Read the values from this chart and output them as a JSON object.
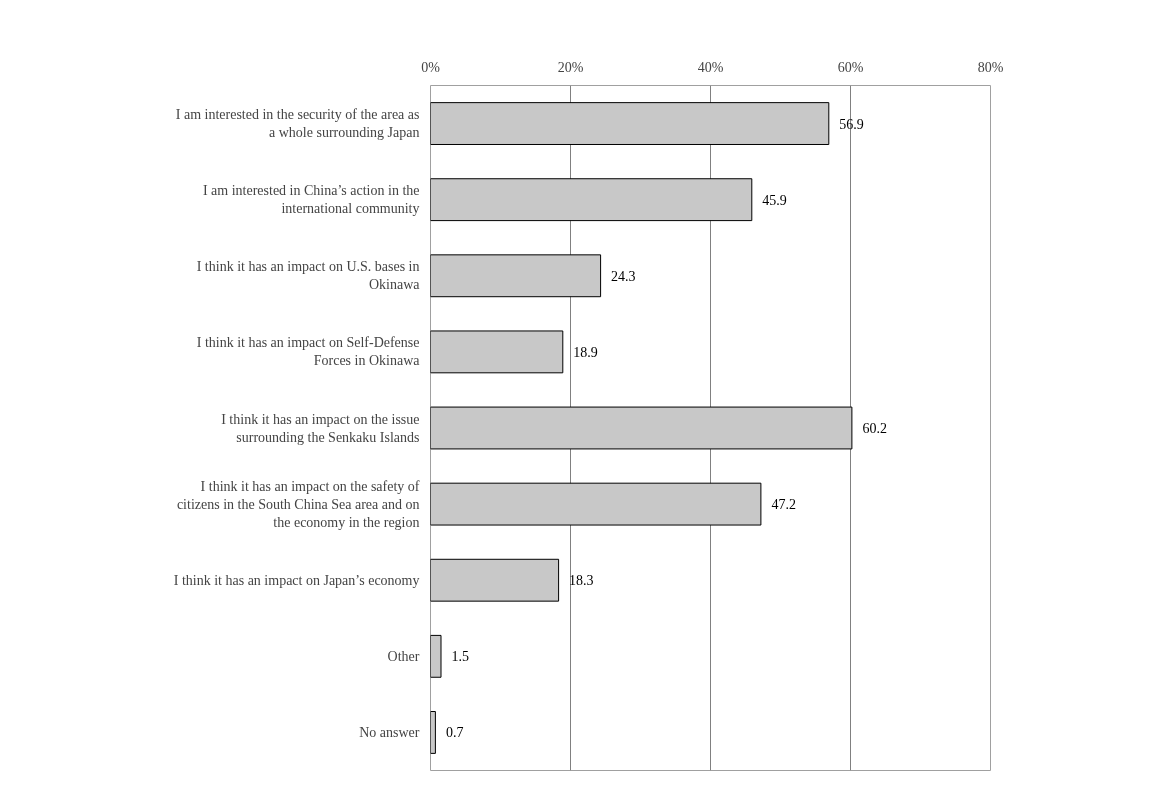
{
  "chart_data": {
    "type": "bar",
    "orientation": "horizontal",
    "categories": [
      "I am interested in the security of the area as a whole surrounding Japan",
      "I am interested in China’s action in the international community",
      "I think it has an impact on U.S. bases in Okinawa",
      "I think it has an impact on Self-Defense Forces in Okinawa",
      "I think it has an impact on the issue surrounding the Senkaku Islands",
      "I think it has an impact on the safety of citizens in the South China Sea area and on the economy in the region",
      "I think it has an impact on Japan’s economy",
      "Other",
      "No answer"
    ],
    "values": [
      56.9,
      45.9,
      24.3,
      18.9,
      60.2,
      47.2,
      18.3,
      1.5,
      0.7
    ],
    "color": "#c8c8c8",
    "xlim": [
      0,
      80
    ],
    "xticks": [
      {
        "value": 0,
        "label": "0%"
      },
      {
        "value": 20,
        "label": "20%"
      },
      {
        "value": 40,
        "label": "40%"
      },
      {
        "value": 60,
        "label": "60%"
      },
      {
        "value": 80,
        "label": "80%"
      }
    ],
    "grid": "x",
    "data_labels": true
  }
}
